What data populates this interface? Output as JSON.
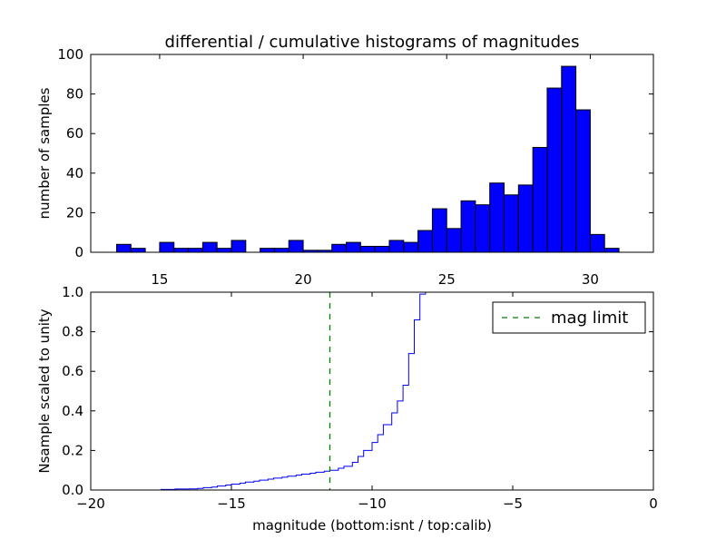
{
  "chart_data": [
    {
      "type": "bar",
      "title": "differential / cumulative histograms of magnitudes",
      "xlabel": "",
      "ylabel": "number of samples",
      "xlim": [
        12.6,
        32.2
      ],
      "ylim": [
        0,
        100
      ],
      "xticks": [
        15,
        20,
        25,
        30
      ],
      "yticks": [
        0,
        20,
        40,
        60,
        80,
        100
      ],
      "bar_color": "#0000ff",
      "bin_width": 0.5,
      "bin_centers": [
        13.75,
        14.25,
        14.75,
        15.25,
        15.75,
        16.25,
        16.75,
        17.25,
        17.75,
        18.25,
        18.75,
        19.25,
        19.75,
        20.25,
        20.75,
        21.25,
        21.75,
        22.25,
        22.75,
        23.25,
        23.75,
        24.25,
        24.75,
        25.25,
        25.75,
        26.25,
        26.75,
        27.25,
        27.75,
        28.25,
        28.75,
        29.25,
        29.75,
        30.25,
        30.75,
        31.25
      ],
      "values": [
        4,
        2,
        0,
        5,
        2,
        2,
        5,
        2,
        6,
        0,
        2,
        2,
        6,
        1,
        1,
        4,
        5,
        3,
        3,
        6,
        5,
        11,
        22,
        12,
        26,
        24,
        35,
        29,
        34,
        53,
        83,
        94,
        72,
        9,
        2,
        0
      ]
    },
    {
      "type": "line",
      "xlabel": "magnitude (bottom:isnt / top:calib)",
      "ylabel": "Nsample scaled to unity",
      "xlim": [
        -20,
        0
      ],
      "ylim": [
        0,
        1.0
      ],
      "xticks": [
        -20,
        -15,
        -10,
        -5,
        0
      ],
      "yticks": [
        0.0,
        0.2,
        0.4,
        0.6,
        0.8,
        1.0
      ],
      "series": [
        {
          "color": "#0000ff",
          "style": "step",
          "x": [
            -18.5,
            -17.5,
            -17.0,
            -16.5,
            -16.2,
            -16.0,
            -15.7,
            -15.5,
            -15.2,
            -15.0,
            -14.7,
            -14.5,
            -14.2,
            -14.0,
            -13.7,
            -13.5,
            -13.2,
            -13.0,
            -12.7,
            -12.5,
            -12.2,
            -12.0,
            -11.7,
            -11.5,
            -11.2,
            -11.0,
            -10.7,
            -10.5,
            -10.3,
            -10.0,
            -9.8,
            -9.6,
            -9.3,
            -9.1,
            -8.9,
            -8.7,
            -8.5,
            -8.3,
            -8.1,
            -7.9,
            -7.5
          ],
          "y": [
            0.0,
            0.003,
            0.005,
            0.006,
            0.008,
            0.012,
            0.015,
            0.02,
            0.025,
            0.03,
            0.035,
            0.04,
            0.045,
            0.05,
            0.055,
            0.06,
            0.065,
            0.07,
            0.075,
            0.08,
            0.085,
            0.09,
            0.095,
            0.1,
            0.11,
            0.12,
            0.14,
            0.17,
            0.2,
            0.24,
            0.28,
            0.33,
            0.39,
            0.45,
            0.53,
            0.69,
            0.86,
            0.99,
            1.0,
            1.0,
            1.0
          ]
        },
        {
          "name": "mag limit",
          "color": "#008000",
          "style": "dashed-vertical",
          "x": -11.5
        }
      ],
      "legend": {
        "position": "top-right",
        "entries": [
          "mag limit"
        ]
      }
    }
  ]
}
